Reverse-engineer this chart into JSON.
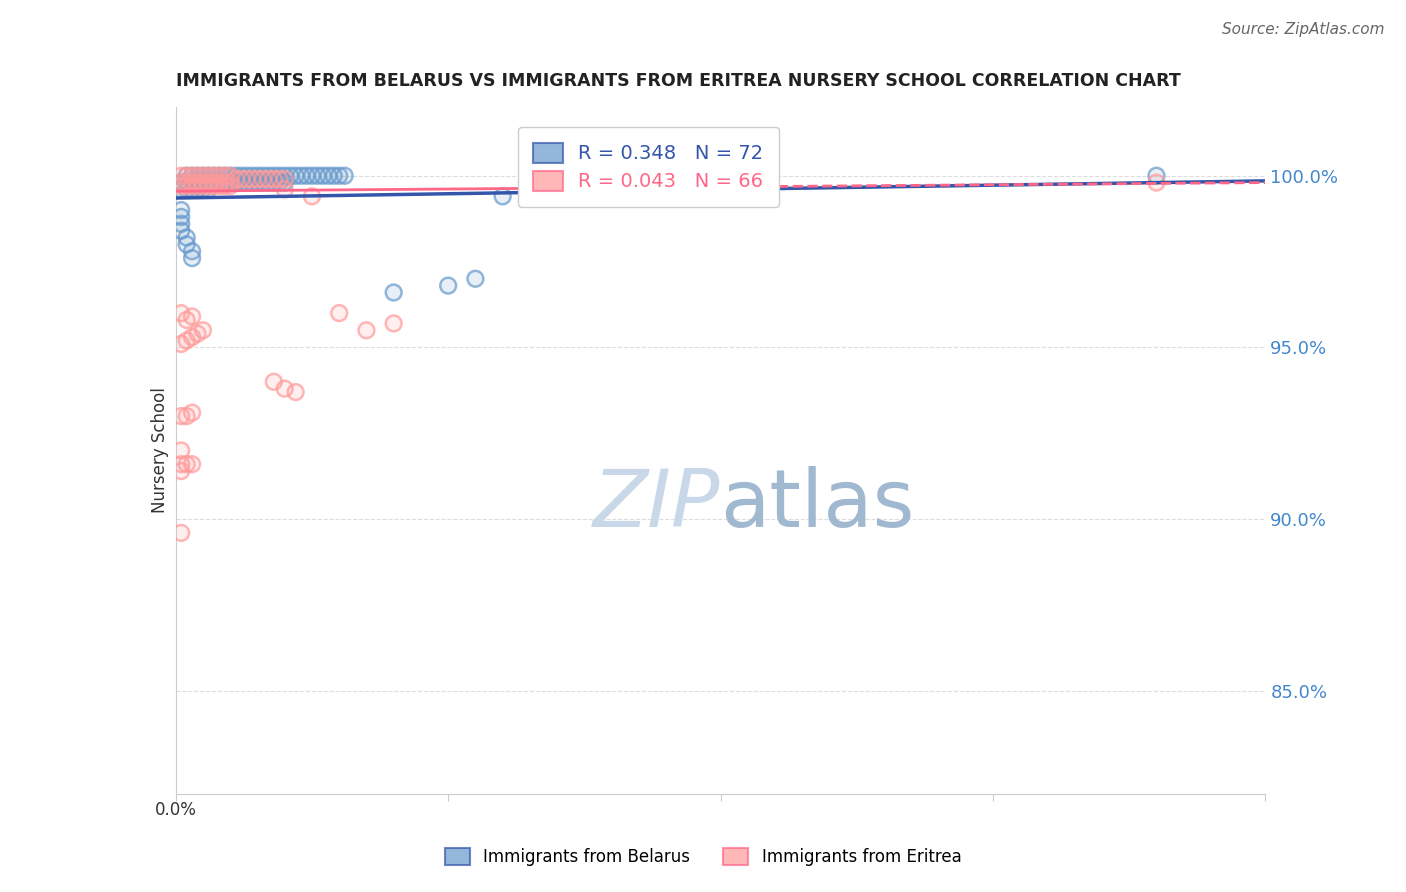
{
  "title": "IMMIGRANTS FROM BELARUS VS IMMIGRANTS FROM ERITREA NURSERY SCHOOL CORRELATION CHART",
  "source": "Source: ZipAtlas.com",
  "ylabel": "Nursery School",
  "legend_belarus": "R = 0.348   N = 72",
  "legend_eritrea": "R = 0.043   N = 66",
  "legend_label_belarus": "Immigrants from Belarus",
  "legend_label_eritrea": "Immigrants from Eritrea",
  "color_belarus": "#6699CC",
  "color_eritrea": "#FF9999",
  "color_trendline_belarus": "#3355AA",
  "color_trendline_eritrea": "#FF6688",
  "watermark_zip_color": "#C8D8E8",
  "watermark_atlas_color": "#A0B8D0",
  "ytick_color": "#4488CC",
  "gridline_color": "#DDDDDD",
  "ylim": [
    0.82,
    1.02
  ],
  "xlim": [
    0.0,
    0.2
  ],
  "yticks": [
    0.85,
    0.9,
    0.95,
    1.0
  ],
  "ytick_labels": [
    "85.0%",
    "90.0%",
    "95.0%",
    "100.0%"
  ],
  "belarus_x": [
    0.002,
    0.003,
    0.004,
    0.005,
    0.006,
    0.007,
    0.008,
    0.009,
    0.01,
    0.011,
    0.012,
    0.013,
    0.014,
    0.015,
    0.016,
    0.017,
    0.018,
    0.019,
    0.02,
    0.021,
    0.022,
    0.023,
    0.024,
    0.025,
    0.026,
    0.027,
    0.028,
    0.029,
    0.03,
    0.031,
    0.001,
    0.002,
    0.003,
    0.004,
    0.005,
    0.006,
    0.007,
    0.008,
    0.009,
    0.01,
    0.011,
    0.012,
    0.013,
    0.014,
    0.015,
    0.016,
    0.017,
    0.018,
    0.019,
    0.02,
    0.001,
    0.002,
    0.003,
    0.004,
    0.005,
    0.006,
    0.06,
    0.07,
    0.08,
    0.09,
    0.001,
    0.001,
    0.001,
    0.001,
    0.002,
    0.002,
    0.003,
    0.003,
    0.18,
    0.04,
    0.05,
    0.055
  ],
  "belarus_y": [
    1.0,
    1.0,
    1.0,
    1.0,
    1.0,
    1.0,
    1.0,
    1.0,
    1.0,
    1.0,
    1.0,
    1.0,
    1.0,
    1.0,
    1.0,
    1.0,
    1.0,
    1.0,
    1.0,
    1.0,
    1.0,
    1.0,
    1.0,
    1.0,
    1.0,
    1.0,
    1.0,
    1.0,
    1.0,
    1.0,
    0.998,
    0.998,
    0.998,
    0.998,
    0.998,
    0.998,
    0.998,
    0.998,
    0.998,
    0.998,
    0.998,
    0.998,
    0.998,
    0.998,
    0.998,
    0.998,
    0.998,
    0.998,
    0.998,
    0.998,
    0.996,
    0.996,
    0.996,
    0.996,
    0.996,
    0.996,
    0.994,
    0.994,
    0.994,
    0.994,
    0.99,
    0.988,
    0.986,
    0.984,
    0.982,
    0.98,
    0.978,
    0.976,
    1.0,
    0.966,
    0.968,
    0.97
  ],
  "eritrea_x": [
    0.001,
    0.002,
    0.003,
    0.004,
    0.005,
    0.006,
    0.007,
    0.008,
    0.009,
    0.01,
    0.011,
    0.012,
    0.013,
    0.014,
    0.015,
    0.016,
    0.017,
    0.018,
    0.019,
    0.02,
    0.001,
    0.002,
    0.003,
    0.004,
    0.005,
    0.006,
    0.007,
    0.008,
    0.009,
    0.01,
    0.001,
    0.002,
    0.003,
    0.004,
    0.005,
    0.006,
    0.007,
    0.008,
    0.009,
    0.01,
    0.02,
    0.025,
    0.03,
    0.035,
    0.04,
    0.001,
    0.002,
    0.003,
    0.001,
    0.002,
    0.003,
    0.004,
    0.005,
    0.018,
    0.02,
    0.022,
    0.001,
    0.002,
    0.003,
    0.001,
    0.001,
    0.002,
    0.003,
    0.001,
    0.18,
    0.001
  ],
  "eritrea_y": [
    1.0,
    1.0,
    1.0,
    1.0,
    1.0,
    1.0,
    1.0,
    1.0,
    1.0,
    1.0,
    0.999,
    0.999,
    0.999,
    0.999,
    0.999,
    0.999,
    0.999,
    0.999,
    0.999,
    0.999,
    0.998,
    0.998,
    0.998,
    0.998,
    0.998,
    0.998,
    0.998,
    0.998,
    0.998,
    0.998,
    0.997,
    0.997,
    0.997,
    0.997,
    0.997,
    0.997,
    0.997,
    0.997,
    0.997,
    0.997,
    0.996,
    0.994,
    0.96,
    0.955,
    0.957,
    0.96,
    0.958,
    0.959,
    0.951,
    0.952,
    0.953,
    0.954,
    0.955,
    0.94,
    0.938,
    0.937,
    0.93,
    0.93,
    0.931,
    0.92,
    0.916,
    0.916,
    0.916,
    0.914,
    0.998,
    0.896
  ],
  "belarus_trend_x": [
    0.0,
    0.2
  ],
  "belarus_trend_y": [
    0.9935,
    0.9985
  ],
  "eritrea_trend_x": [
    0.0,
    0.2
  ],
  "eritrea_trend_y": [
    0.9955,
    0.998
  ],
  "eritrea_trend_split_x": 0.07
}
